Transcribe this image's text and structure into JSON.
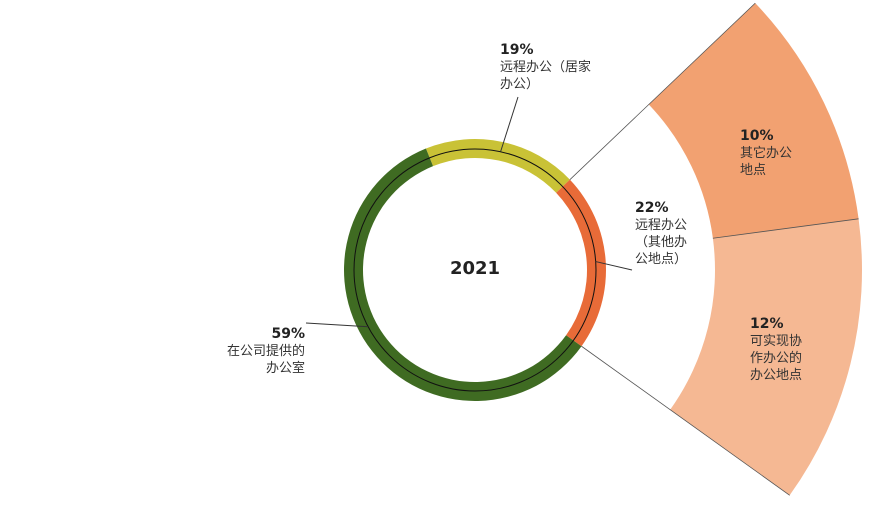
{
  "chart_data": {
    "type": "pie",
    "subtype": "donut with exploded breakdown",
    "center_label": "2021",
    "series": [
      {
        "name": "在公司提供的办公室",
        "value": 59,
        "label_pct": "59%",
        "label_lines": [
          "在公司提供的",
          "办公室"
        ],
        "color": "#3f6b22"
      },
      {
        "name": "远程办公（居家办公）",
        "value": 19,
        "label_pct": "19%",
        "label_lines": [
          "远程办公（居家",
          "办公）"
        ],
        "color": "#c9c236"
      },
      {
        "name": "远程办公（其他办公地点）",
        "value": 22,
        "label_pct": "22%",
        "label_lines": [
          "远程办公",
          "（其他办",
          "公地点）"
        ],
        "color": "#e86b38"
      }
    ],
    "breakdown": {
      "of": "远程办公（其他办公地点）",
      "segments": [
        {
          "name": "其它办公地点",
          "value": 10,
          "label_pct": "10%",
          "label_lines": [
            "其它办公",
            "地点"
          ],
          "color": "#f2a171"
        },
        {
          "name": "可实现协作办公的办公地点",
          "value": 12,
          "label_pct": "12%",
          "label_lines": [
            "可实现协",
            "作办公的",
            "办公地点"
          ],
          "color": "#f5b893"
        }
      ]
    }
  }
}
